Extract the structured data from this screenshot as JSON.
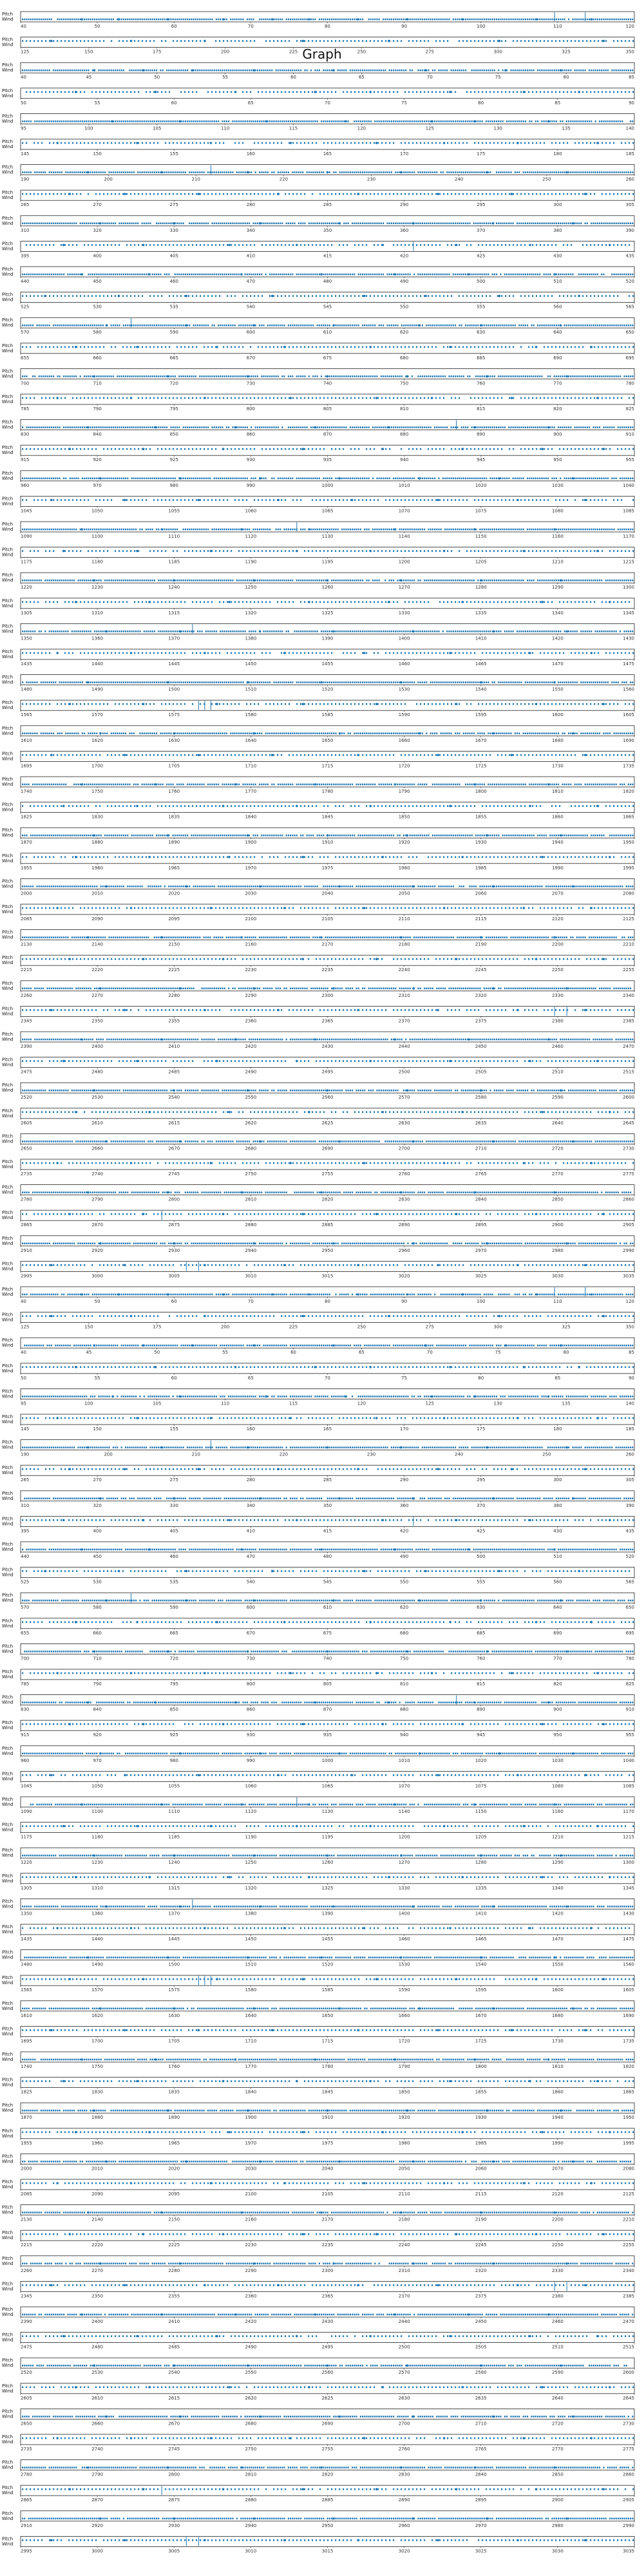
{
  "chart_data": {
    "type": "scatter",
    "title": "Graph",
    "series_color": "#1f77b4",
    "row_labels": [
      "Pitch",
      "Wind"
    ],
    "panel_count": 100,
    "rows": [
      {
        "ticks": [
          "40",
          "50",
          "60",
          "70",
          "80",
          "90",
          "100",
          "110",
          "120"
        ],
        "pitch_hits": [
          0.1,
          0.16,
          0.24,
          0.33,
          0.41,
          0.47,
          0.55,
          0.63,
          0.72,
          0.84,
          0.93
        ],
        "wind_spikes": [
          0.87,
          0.92
        ]
      },
      {
        "ticks": [
          "125",
          "150",
          "175",
          "200",
          "225",
          "250",
          "275",
          "300",
          "325",
          "350"
        ],
        "pitch_hits": [
          0.05,
          0.18,
          0.3,
          0.46,
          0.6,
          0.78,
          0.95
        ],
        "wind_spikes": []
      },
      {
        "ticks": [
          "40",
          "45",
          "50",
          "55",
          "60",
          "65",
          "70",
          "75",
          "80",
          "85"
        ],
        "pitch_hits": [
          0.12,
          0.2,
          0.28,
          0.38,
          0.51,
          0.66,
          0.79,
          0.88
        ],
        "wind_spikes": []
      },
      {
        "ticks": [
          "50",
          "55",
          "60",
          "65",
          "70",
          "75",
          "80",
          "85",
          "90"
        ],
        "pitch_hits": [
          0.09,
          0.22,
          0.35,
          0.48,
          0.57,
          0.7,
          0.82,
          0.91
        ],
        "wind_spikes": []
      },
      {
        "ticks": [
          "95",
          "100",
          "105",
          "110",
          "115",
          "120",
          "125",
          "130",
          "135",
          "140"
        ],
        "pitch_hits": [
          0.15,
          0.26,
          0.4,
          0.53,
          0.67,
          0.74,
          0.86
        ],
        "wind_spikes": []
      },
      {
        "ticks": [
          "145",
          "150",
          "155",
          "160",
          "165",
          "170",
          "175",
          "180",
          "185"
        ],
        "pitch_hits": [
          0.06,
          0.19,
          0.31,
          0.44,
          0.58,
          0.69,
          0.81,
          0.94
        ],
        "wind_spikes": []
      },
      {
        "ticks": [
          "190",
          "200",
          "210",
          "220",
          "230",
          "240",
          "250",
          "260"
        ],
        "pitch_hits": [
          0.11,
          0.23,
          0.37,
          0.5,
          0.62,
          0.76,
          0.89
        ],
        "wind_spikes": [
          0.31
        ]
      },
      {
        "ticks": [
          "265",
          "270",
          "275",
          "280",
          "285",
          "290",
          "295",
          "300",
          "305"
        ],
        "pitch_hits": [
          0.08,
          0.17,
          0.29,
          0.42,
          0.55,
          0.68,
          0.8,
          0.92
        ],
        "wind_spikes": []
      },
      {
        "ticks": [
          "310",
          "320",
          "330",
          "340",
          "350",
          "360",
          "370",
          "380",
          "390"
        ],
        "pitch_hits": [
          0.13,
          0.25,
          0.39,
          0.52,
          0.64,
          0.77,
          0.9
        ],
        "wind_spikes": []
      },
      {
        "ticks": [
          "395",
          "400",
          "405",
          "410",
          "415",
          "420",
          "425",
          "430",
          "435"
        ],
        "pitch_hits": [
          0.07,
          0.2,
          0.34,
          0.45,
          0.59,
          0.71,
          0.83,
          0.96
        ],
        "wind_spikes": [
          0.64
        ]
      },
      {
        "ticks": [
          "440",
          "450",
          "460",
          "470",
          "480",
          "490",
          "500",
          "510",
          "520"
        ],
        "pitch_hits": [
          0.1,
          0.21,
          0.36,
          0.49,
          0.61,
          0.73,
          0.87
        ],
        "wind_spikes": []
      },
      {
        "ticks": [
          "525",
          "530",
          "535",
          "540",
          "545",
          "550",
          "555",
          "560",
          "565"
        ],
        "pitch_hits": [
          0.04,
          0.16,
          0.27,
          0.41,
          0.56,
          0.66,
          0.78,
          0.91
        ],
        "wind_spikes": []
      },
      {
        "ticks": [
          "570",
          "580",
          "590",
          "600",
          "610",
          "620",
          "630",
          "640",
          "650"
        ],
        "pitch_hits": [
          0.14,
          0.27,
          0.38,
          0.51,
          0.65,
          0.75,
          0.88
        ],
        "wind_spikes": [
          0.18
        ]
      },
      {
        "ticks": [
          "655",
          "660",
          "665",
          "670",
          "675",
          "680",
          "685",
          "690",
          "695"
        ],
        "pitch_hits": [
          0.09,
          0.19,
          0.32,
          0.43,
          0.57,
          0.7,
          0.84,
          0.93
        ],
        "wind_spikes": []
      },
      {
        "ticks": [
          "700",
          "710",
          "720",
          "730",
          "740",
          "750",
          "760",
          "770",
          "780"
        ],
        "pitch_hits": [
          0.12,
          0.24,
          0.37,
          0.5,
          0.63,
          0.76,
          0.89
        ],
        "wind_spikes": []
      },
      {
        "ticks": [
          "785",
          "790",
          "795",
          "800",
          "805",
          "810",
          "815",
          "820",
          "825"
        ],
        "pitch_hits": [
          0.06,
          0.18,
          0.3,
          0.44,
          0.58,
          0.67,
          0.8,
          0.94
        ],
        "wind_spikes": []
      },
      {
        "ticks": [
          "830",
          "840",
          "850",
          "860",
          "870",
          "880",
          "890",
          "900",
          "910"
        ],
        "pitch_hits": [
          0.11,
          0.22,
          0.35,
          0.48,
          0.6,
          0.74,
          0.86
        ],
        "wind_spikes": [
          0.71
        ]
      },
      {
        "ticks": [
          "915",
          "920",
          "925",
          "930",
          "935",
          "940",
          "945",
          "950",
          "955"
        ],
        "pitch_hits": [
          0.08,
          0.2,
          0.33,
          0.46,
          0.59,
          0.72,
          0.85,
          0.95
        ],
        "wind_spikes": []
      },
      {
        "ticks": [
          "960",
          "970",
          "980",
          "990",
          "1000",
          "1010",
          "1020",
          "1030",
          "1040"
        ],
        "pitch_hits": [
          0.13,
          0.26,
          0.39,
          0.52,
          0.65,
          0.78,
          0.9
        ],
        "wind_spikes": []
      },
      {
        "ticks": [
          "1045",
          "1050",
          "1055",
          "1060",
          "1065",
          "1070",
          "1075",
          "1080",
          "1085"
        ],
        "pitch_hits": [
          0.05,
          0.17,
          0.29,
          0.42,
          0.54,
          0.68,
          0.81,
          0.92
        ],
        "wind_spikes": []
      },
      {
        "ticks": [
          "1090",
          "1100",
          "1110",
          "1120",
          "1130",
          "1140",
          "1150",
          "1160",
          "1170"
        ],
        "pitch_hits": [
          0.1,
          0.23,
          0.36,
          0.47,
          0.61,
          0.74,
          0.87
        ],
        "wind_spikes": [
          0.45
        ]
      },
      {
        "ticks": [
          "1175",
          "1180",
          "1185",
          "1190",
          "1195",
          "1200",
          "1205",
          "1210",
          "1215"
        ],
        "pitch_hits": [
          0.07,
          0.19,
          0.31,
          0.45,
          0.57,
          0.69,
          0.82,
          0.94
        ],
        "wind_spikes": []
      },
      {
        "ticks": [
          "1220",
          "1230",
          "1240",
          "1250",
          "1260",
          "1270",
          "1280",
          "1290",
          "1300"
        ],
        "pitch_hits": [
          0.12,
          0.25,
          0.38,
          0.5,
          0.62,
          0.75,
          0.88
        ],
        "wind_spikes": []
      },
      {
        "ticks": [
          "1305",
          "1310",
          "1315",
          "1320",
          "1325",
          "1330",
          "1335",
          "1340",
          "1345"
        ],
        "pitch_hits": [
          0.09,
          0.21,
          0.34,
          0.47,
          0.6,
          0.72,
          0.85,
          0.96
        ],
        "wind_spikes": []
      },
      {
        "ticks": [
          "1350",
          "1360",
          "1370",
          "1380",
          "1390",
          "1400",
          "1410",
          "1420",
          "1430"
        ],
        "pitch_hits": [
          0.14,
          0.26,
          0.39,
          0.51,
          0.64,
          0.77,
          0.89
        ],
        "wind_spikes": [
          0.28
        ]
      },
      {
        "ticks": [
          "1435",
          "1440",
          "1445",
          "1450",
          "1455",
          "1460",
          "1465",
          "1470",
          "1475"
        ],
        "pitch_hits": [
          0.06,
          0.18,
          0.3,
          0.43,
          0.56,
          0.7,
          0.83,
          0.93
        ],
        "wind_spikes": []
      },
      {
        "ticks": [
          "1480",
          "1490",
          "1500",
          "1510",
          "1520",
          "1530",
          "1540",
          "1550",
          "1560"
        ],
        "pitch_hits": [
          0.11,
          0.24,
          0.37,
          0.49,
          0.62,
          0.75,
          0.87
        ],
        "wind_spikes": []
      },
      {
        "ticks": [
          "1565",
          "1570",
          "1575",
          "1580",
          "1585",
          "1590",
          "1595",
          "1600",
          "1605"
        ],
        "pitch_hits": [
          0.08,
          0.2,
          0.32,
          0.46,
          0.58,
          0.71,
          0.84,
          0.95
        ],
        "wind_spikes": [
          0.29,
          0.3,
          0.31
        ]
      },
      {
        "ticks": [
          "1610",
          "1620",
          "1630",
          "1640",
          "1650",
          "1660",
          "1670",
          "1680",
          "1690"
        ],
        "pitch_hits": [
          0.13,
          0.25,
          0.38,
          0.52,
          0.65,
          0.77,
          0.9
        ],
        "wind_spikes": []
      },
      {
        "ticks": [
          "1695",
          "1700",
          "1705",
          "1710",
          "1715",
          "1720",
          "1725",
          "1730",
          "1735"
        ],
        "pitch_hits": [
          0.05,
          0.17,
          0.29,
          0.41,
          0.55,
          0.68,
          0.8,
          0.92
        ],
        "wind_spikes": []
      },
      {
        "ticks": [
          "1740",
          "1750",
          "1760",
          "1770",
          "1780",
          "1790",
          "1800",
          "1810",
          "1820"
        ],
        "pitch_hits": [
          0.1,
          0.22,
          0.35,
          0.48,
          0.61,
          0.74,
          0.86
        ],
        "wind_spikes": []
      },
      {
        "ticks": [
          "1825",
          "1830",
          "1835",
          "1840",
          "1845",
          "1850",
          "1855",
          "1860",
          "1865"
        ],
        "pitch_hits": [
          0.07,
          0.19,
          0.33,
          0.45,
          0.57,
          0.7,
          0.83,
          0.94
        ],
        "wind_spikes": []
      },
      {
        "ticks": [
          "1870",
          "1880",
          "1890",
          "1900",
          "1910",
          "1920",
          "1930",
          "1940",
          "1950"
        ],
        "pitch_hits": [
          0.12,
          0.24,
          0.37,
          0.5,
          0.63,
          0.76,
          0.88
        ],
        "wind_spikes": []
      },
      {
        "ticks": [
          "1955",
          "1960",
          "1965",
          "1970",
          "1975",
          "1980",
          "1985",
          "1990",
          "1995"
        ],
        "pitch_hits": [
          0.09,
          0.21,
          0.34,
          0.46,
          0.59,
          0.72,
          0.85,
          0.96
        ],
        "wind_spikes": []
      },
      {
        "ticks": [
          "2000",
          "2010",
          "2020",
          "2030",
          "2040",
          "2050",
          "2060",
          "2070",
          "2080"
        ],
        "pitch_hits": [
          0.14,
          0.27,
          0.39,
          0.52,
          0.64,
          0.77,
          0.9
        ],
        "wind_spikes": []
      },
      {
        "ticks": [
          "2085",
          "2090",
          "2095",
          "2100",
          "2105",
          "2110",
          "2115",
          "2120",
          "2125"
        ],
        "pitch_hits": [
          0.06,
          0.18,
          0.31,
          0.43,
          0.56,
          0.69,
          0.82,
          0.93
        ],
        "wind_spikes": []
      },
      {
        "ticks": [
          "2130",
          "2140",
          "2150",
          "2160",
          "2170",
          "2180",
          "2190",
          "2200",
          "2210"
        ],
        "pitch_hits": [
          0.11,
          0.23,
          0.36,
          0.49,
          0.62,
          0.75,
          0.87
        ],
        "wind_spikes": []
      },
      {
        "ticks": [
          "2215",
          "2220",
          "2225",
          "2230",
          "2235",
          "2240",
          "2245",
          "2250",
          "2255"
        ],
        "pitch_hits": [
          0.08,
          0.2,
          0.33,
          0.46,
          0.58,
          0.71,
          0.84,
          0.95
        ],
        "wind_spikes": []
      },
      {
        "ticks": [
          "2260",
          "2270",
          "2280",
          "2290",
          "2300",
          "2310",
          "2320",
          "2330",
          "2340"
        ],
        "pitch_hits": [
          0.13,
          0.26,
          0.38,
          0.51,
          0.64,
          0.77,
          0.89
        ],
        "wind_spikes": []
      },
      {
        "ticks": [
          "2345",
          "2350",
          "2355",
          "2360",
          "2365",
          "2370",
          "2375",
          "2380",
          "2385"
        ],
        "pitch_hits": [
          0.05,
          0.17,
          0.3,
          0.42,
          0.55,
          0.68,
          0.81,
          0.92
        ],
        "wind_spikes": [
          0.87,
          0.89
        ]
      },
      {
        "ticks": [
          "2390",
          "2400",
          "2410",
          "2420",
          "2430",
          "2440",
          "2450",
          "2460",
          "2470"
        ],
        "pitch_hits": [
          0.1,
          0.23,
          0.35,
          0.48,
          0.61,
          0.73,
          0.86
        ],
        "wind_spikes": []
      },
      {
        "ticks": [
          "2475",
          "2480",
          "2485",
          "2490",
          "2495",
          "2500",
          "2505",
          "2510",
          "2515"
        ],
        "pitch_hits": [
          0.07,
          0.19,
          0.32,
          0.45,
          0.57,
          0.7,
          0.83,
          0.94
        ],
        "wind_spikes": []
      },
      {
        "ticks": [
          "2520",
          "2530",
          "2540",
          "2550",
          "2560",
          "2570",
          "2580",
          "2590",
          "2600"
        ],
        "pitch_hits": [
          0.12,
          0.25,
          0.37,
          0.5,
          0.63,
          0.75,
          0.88
        ],
        "wind_spikes": []
      },
      {
        "ticks": [
          "2605",
          "2610",
          "2615",
          "2620",
          "2625",
          "2630",
          "2635",
          "2640",
          "2645"
        ],
        "pitch_hits": [
          0.09,
          0.21,
          0.34,
          0.47,
          0.59,
          0.72,
          0.85,
          0.96
        ],
        "wind_spikes": []
      },
      {
        "ticks": [
          "2650",
          "2660",
          "2670",
          "2680",
          "2690",
          "2700",
          "2710",
          "2720",
          "2730"
        ],
        "pitch_hits": [
          0.14,
          0.26,
          0.39,
          0.52,
          0.64,
          0.77,
          0.9
        ],
        "wind_spikes": []
      },
      {
        "ticks": [
          "2735",
          "2740",
          "2745",
          "2750",
          "2755",
          "2760",
          "2765",
          "2770",
          "2775"
        ],
        "pitch_hits": [
          0.06,
          0.18,
          0.31,
          0.44,
          0.56,
          0.69,
          0.82,
          0.93
        ],
        "wind_spikes": []
      },
      {
        "ticks": [
          "2780",
          "2790",
          "2800",
          "2810",
          "2820",
          "2830",
          "2840",
          "2850",
          "2860"
        ],
        "pitch_hits": [
          0.11,
          0.24,
          0.36,
          0.49,
          0.62,
          0.74,
          0.87
        ],
        "wind_spikes": []
      },
      {
        "ticks": [
          "2865",
          "2870",
          "2875",
          "2880",
          "2885",
          "2890",
          "2895",
          "2900",
          "2905"
        ],
        "pitch_hits": [
          0.08,
          0.2,
          0.33,
          0.46,
          0.58,
          0.71,
          0.84,
          0.95
        ],
        "wind_spikes": [
          0.23
        ]
      },
      {
        "ticks": [
          "2910",
          "2920",
          "2930",
          "2940",
          "2950",
          "2960",
          "2970",
          "2980",
          "2990"
        ],
        "pitch_hits": [
          0.13,
          0.25,
          0.38,
          0.51,
          0.64,
          0.76,
          0.89
        ],
        "wind_spikes": []
      },
      {
        "ticks": [
          "2995",
          "3000",
          "3005",
          "3010",
          "3015",
          "3020",
          "3025",
          "3030",
          "3035"
        ],
        "pitch_hits": [
          0.05,
          0.17,
          0.3,
          0.43,
          0.55,
          0.68,
          0.81,
          0.92
        ],
        "wind_spikes": [
          0.27,
          0.29
        ]
      }
    ]
  }
}
